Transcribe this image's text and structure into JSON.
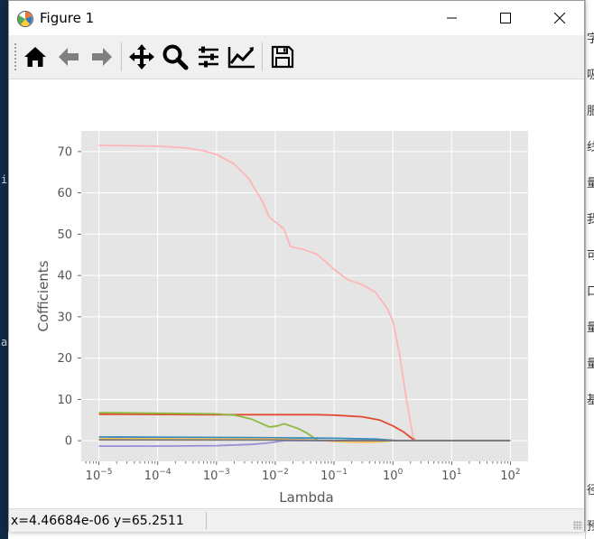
{
  "window": {
    "title": "Figure 1"
  },
  "toolbar": {
    "tools": [
      "home-icon",
      "back-arrow-icon",
      "forward-arrow-icon",
      "pan-icon",
      "zoom-icon",
      "configure-subplots-icon",
      "edit-axis-icon",
      "save-icon"
    ]
  },
  "status": {
    "coords": "x=4.46684e-06  y=65.2511"
  },
  "background": {
    "left_fragments": [
      "i",
      "a"
    ],
    "right_glyphs": [
      "字",
      "吸",
      "服",
      "线",
      "量",
      "我",
      "可",
      "口",
      "量",
      "量",
      "基",
      "径",
      "预"
    ]
  },
  "chart_data": {
    "type": "line",
    "xlabel": "Lambda",
    "ylabel": "Cofficients",
    "xscale": "log",
    "xlim": [
      5e-06,
      200
    ],
    "ylim": [
      -5,
      75
    ],
    "x_ticks": [
      {
        "value": 1e-05,
        "base": "10",
        "exp": "−5"
      },
      {
        "value": 0.0001,
        "base": "10",
        "exp": "−4"
      },
      {
        "value": 0.001,
        "base": "10",
        "exp": "−3"
      },
      {
        "value": 0.01,
        "base": "10",
        "exp": "−2"
      },
      {
        "value": 0.1,
        "base": "10",
        "exp": "−1"
      },
      {
        "value": 1,
        "base": "10",
        "exp": "0"
      },
      {
        "value": 10,
        "base": "10",
        "exp": "1"
      },
      {
        "value": 100,
        "base": "10",
        "exp": "2"
      }
    ],
    "y_ticks": [
      "0",
      "10",
      "20",
      "30",
      "40",
      "50",
      "60",
      "70"
    ],
    "grid": true,
    "style": "ggplot",
    "series": [
      {
        "color": "#ffb5b8",
        "points": [
          [
            1e-05,
            71.5
          ],
          [
            0.0001,
            71.3
          ],
          [
            0.0003,
            70.9
          ],
          [
            0.0006,
            70.2
          ],
          [
            0.001,
            69.3
          ],
          [
            0.002,
            67
          ],
          [
            0.0035,
            63.5
          ],
          [
            0.006,
            58
          ],
          [
            0.008,
            54
          ],
          [
            0.01,
            53
          ],
          [
            0.014,
            51.3
          ],
          [
            0.018,
            47
          ],
          [
            0.03,
            46.3
          ],
          [
            0.05,
            45.2
          ],
          [
            0.07,
            43.5
          ],
          [
            0.1,
            41.5
          ],
          [
            0.17,
            39
          ],
          [
            0.3,
            37.8
          ],
          [
            0.5,
            36
          ],
          [
            0.8,
            32
          ],
          [
            1,
            29
          ],
          [
            1.3,
            21
          ],
          [
            1.7,
            10
          ],
          [
            2.2,
            1
          ],
          [
            2.5,
            0
          ],
          [
            10,
            0
          ],
          [
            100,
            0
          ]
        ]
      },
      {
        "color": "#e24a33",
        "points": [
          [
            1e-05,
            6.4
          ],
          [
            0.001,
            6.3
          ],
          [
            0.01,
            6.3
          ],
          [
            0.05,
            6.3
          ],
          [
            0.1,
            6.2
          ],
          [
            0.3,
            5.8
          ],
          [
            0.6,
            5.0
          ],
          [
            1,
            3.6
          ],
          [
            1.5,
            2.2
          ],
          [
            2,
            0.8
          ],
          [
            2.4,
            0
          ],
          [
            100,
            0
          ]
        ]
      },
      {
        "color": "#8eba42",
        "points": [
          [
            1e-05,
            6.8
          ],
          [
            0.001,
            6.5
          ],
          [
            0.002,
            6.2
          ],
          [
            0.004,
            5.2
          ],
          [
            0.006,
            4.1
          ],
          [
            0.008,
            3.3
          ],
          [
            0.011,
            3.6
          ],
          [
            0.014,
            4.1
          ],
          [
            0.018,
            3.6
          ],
          [
            0.025,
            2.9
          ],
          [
            0.035,
            1.8
          ],
          [
            0.045,
            0.7
          ],
          [
            0.055,
            0
          ],
          [
            100,
            0
          ]
        ]
      },
      {
        "color": "#348abd",
        "points": [
          [
            1e-05,
            0.9
          ],
          [
            0.001,
            0.8
          ],
          [
            0.01,
            0.7
          ],
          [
            0.1,
            0.6
          ],
          [
            0.5,
            0.4
          ],
          [
            1,
            0.1
          ],
          [
            1.5,
            0
          ],
          [
            100,
            0
          ]
        ]
      },
      {
        "color": "#fbc15e",
        "points": [
          [
            1e-05,
            0.5
          ],
          [
            0.01,
            0.4
          ],
          [
            0.05,
            0.1
          ],
          [
            0.1,
            -0.2
          ],
          [
            0.3,
            -0.4
          ],
          [
            0.6,
            -0.3
          ],
          [
            1,
            0
          ],
          [
            100,
            0
          ]
        ]
      },
      {
        "color": "#988ed5",
        "points": [
          [
            1e-05,
            -1.3
          ],
          [
            0.0001,
            -1.3
          ],
          [
            0.001,
            -1.2
          ],
          [
            0.004,
            -0.9
          ],
          [
            0.007,
            -0.6
          ],
          [
            0.01,
            -0.3
          ],
          [
            0.014,
            0
          ],
          [
            100,
            0
          ]
        ]
      },
      {
        "color": "#777777",
        "points": [
          [
            1e-05,
            0.2
          ],
          [
            0.01,
            0.15
          ],
          [
            0.1,
            0.05
          ],
          [
            0.5,
            0
          ],
          [
            100,
            0
          ]
        ]
      }
    ]
  }
}
